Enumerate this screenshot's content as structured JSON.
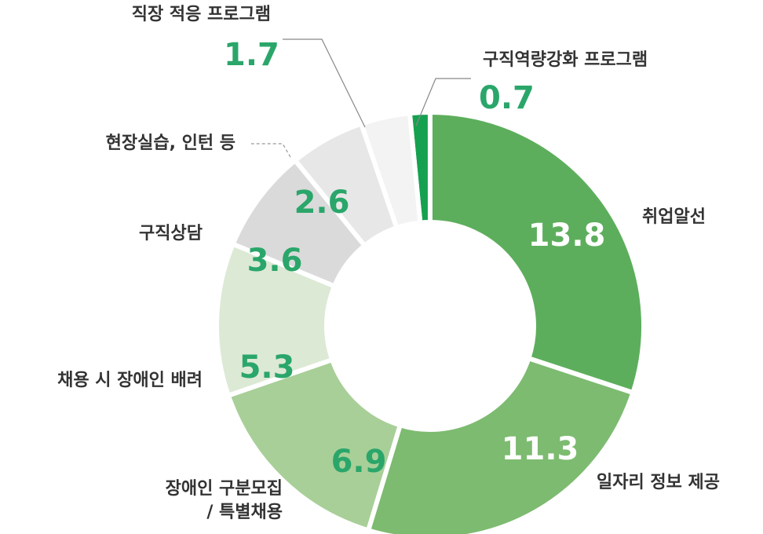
{
  "chart_data": {
    "type": "donut",
    "categories": [
      "구직역량강화 프로그램",
      "취업알선",
      "일자리 정보 제공",
      "장애인 구분모집\n/ 특별채용",
      "채용 시 장애인 배려",
      "구직상담",
      "현장실습, 인턴 등",
      "직장 적응 프로그램"
    ],
    "values": [
      0.7,
      13.8,
      11.3,
      6.9,
      5.3,
      3.6,
      2.6,
      1.7
    ],
    "colors": [
      "#16a150",
      "#5dae5c",
      "#7dbb70",
      "#a8cf98",
      "#dce9d5",
      "#dadada",
      "#e7e7e7",
      "#f3f3f3"
    ]
  }
}
